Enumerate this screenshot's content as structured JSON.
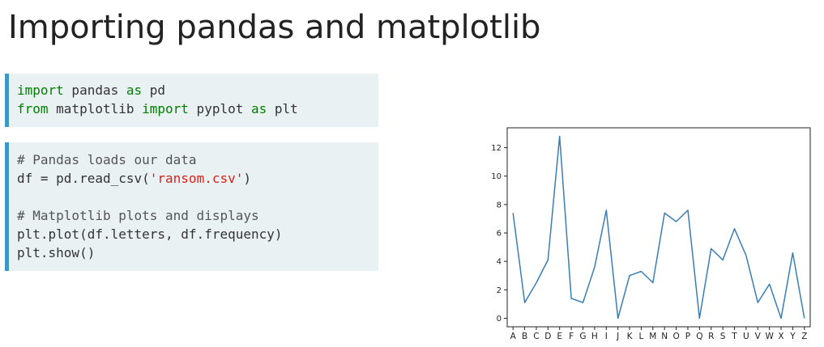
{
  "slide": {
    "title": "Importing pandas and matplotlib"
  },
  "cells": [
    {
      "lines": [
        [
          {
            "t": "import",
            "c": "kw"
          },
          {
            "t": " pandas "
          },
          {
            "t": "as",
            "c": "kw"
          },
          {
            "t": " pd"
          }
        ],
        [
          {
            "t": "from",
            "c": "kw"
          },
          {
            "t": " matplotlib "
          },
          {
            "t": "import",
            "c": "kw"
          },
          {
            "t": " pyplot "
          },
          {
            "t": "as",
            "c": "kw"
          },
          {
            "t": " plt"
          }
        ]
      ]
    },
    {
      "lines": [
        [
          {
            "t": "# Pandas loads our data",
            "c": "cm"
          }
        ],
        [
          {
            "t": "df = pd.read_csv("
          },
          {
            "t": "'ransom.csv'",
            "c": "st"
          },
          {
            "t": ")"
          }
        ],
        [],
        [
          {
            "t": "# Matplotlib plots and displays",
            "c": "cm"
          }
        ],
        [
          {
            "t": "plt.plot(df.letters, df.frequency)"
          }
        ],
        [
          {
            "t": "plt.show()"
          }
        ]
      ]
    }
  ],
  "colors": {
    "keyword": "#008000",
    "comment": "#555555",
    "string": "#d8221b",
    "cell_background": "#e9f1f3",
    "cell_border": "#3d98c8",
    "line": "#3a7db5"
  },
  "chart_data": {
    "type": "line",
    "title": "",
    "xlabel": "",
    "ylabel": "",
    "x": [
      "A",
      "B",
      "C",
      "D",
      "E",
      "F",
      "G",
      "H",
      "I",
      "J",
      "K",
      "L",
      "M",
      "N",
      "O",
      "P",
      "Q",
      "R",
      "S",
      "T",
      "U",
      "V",
      "W",
      "X",
      "Y",
      "Z"
    ],
    "series": [
      {
        "values": [
          7.4,
          1.1,
          2.5,
          4.1,
          12.8,
          1.4,
          1.1,
          3.6,
          7.6,
          0.0,
          3.0,
          3.3,
          2.5,
          7.4,
          6.8,
          7.6,
          0.0,
          4.9,
          4.1,
          6.3,
          4.4,
          1.1,
          2.4,
          0.0,
          4.6,
          0.0
        ]
      }
    ],
    "ylim": [
      -0.6,
      13.4
    ],
    "yticks": [
      0,
      2,
      4,
      6,
      8,
      10,
      12
    ],
    "grid": false,
    "legend": "none"
  }
}
